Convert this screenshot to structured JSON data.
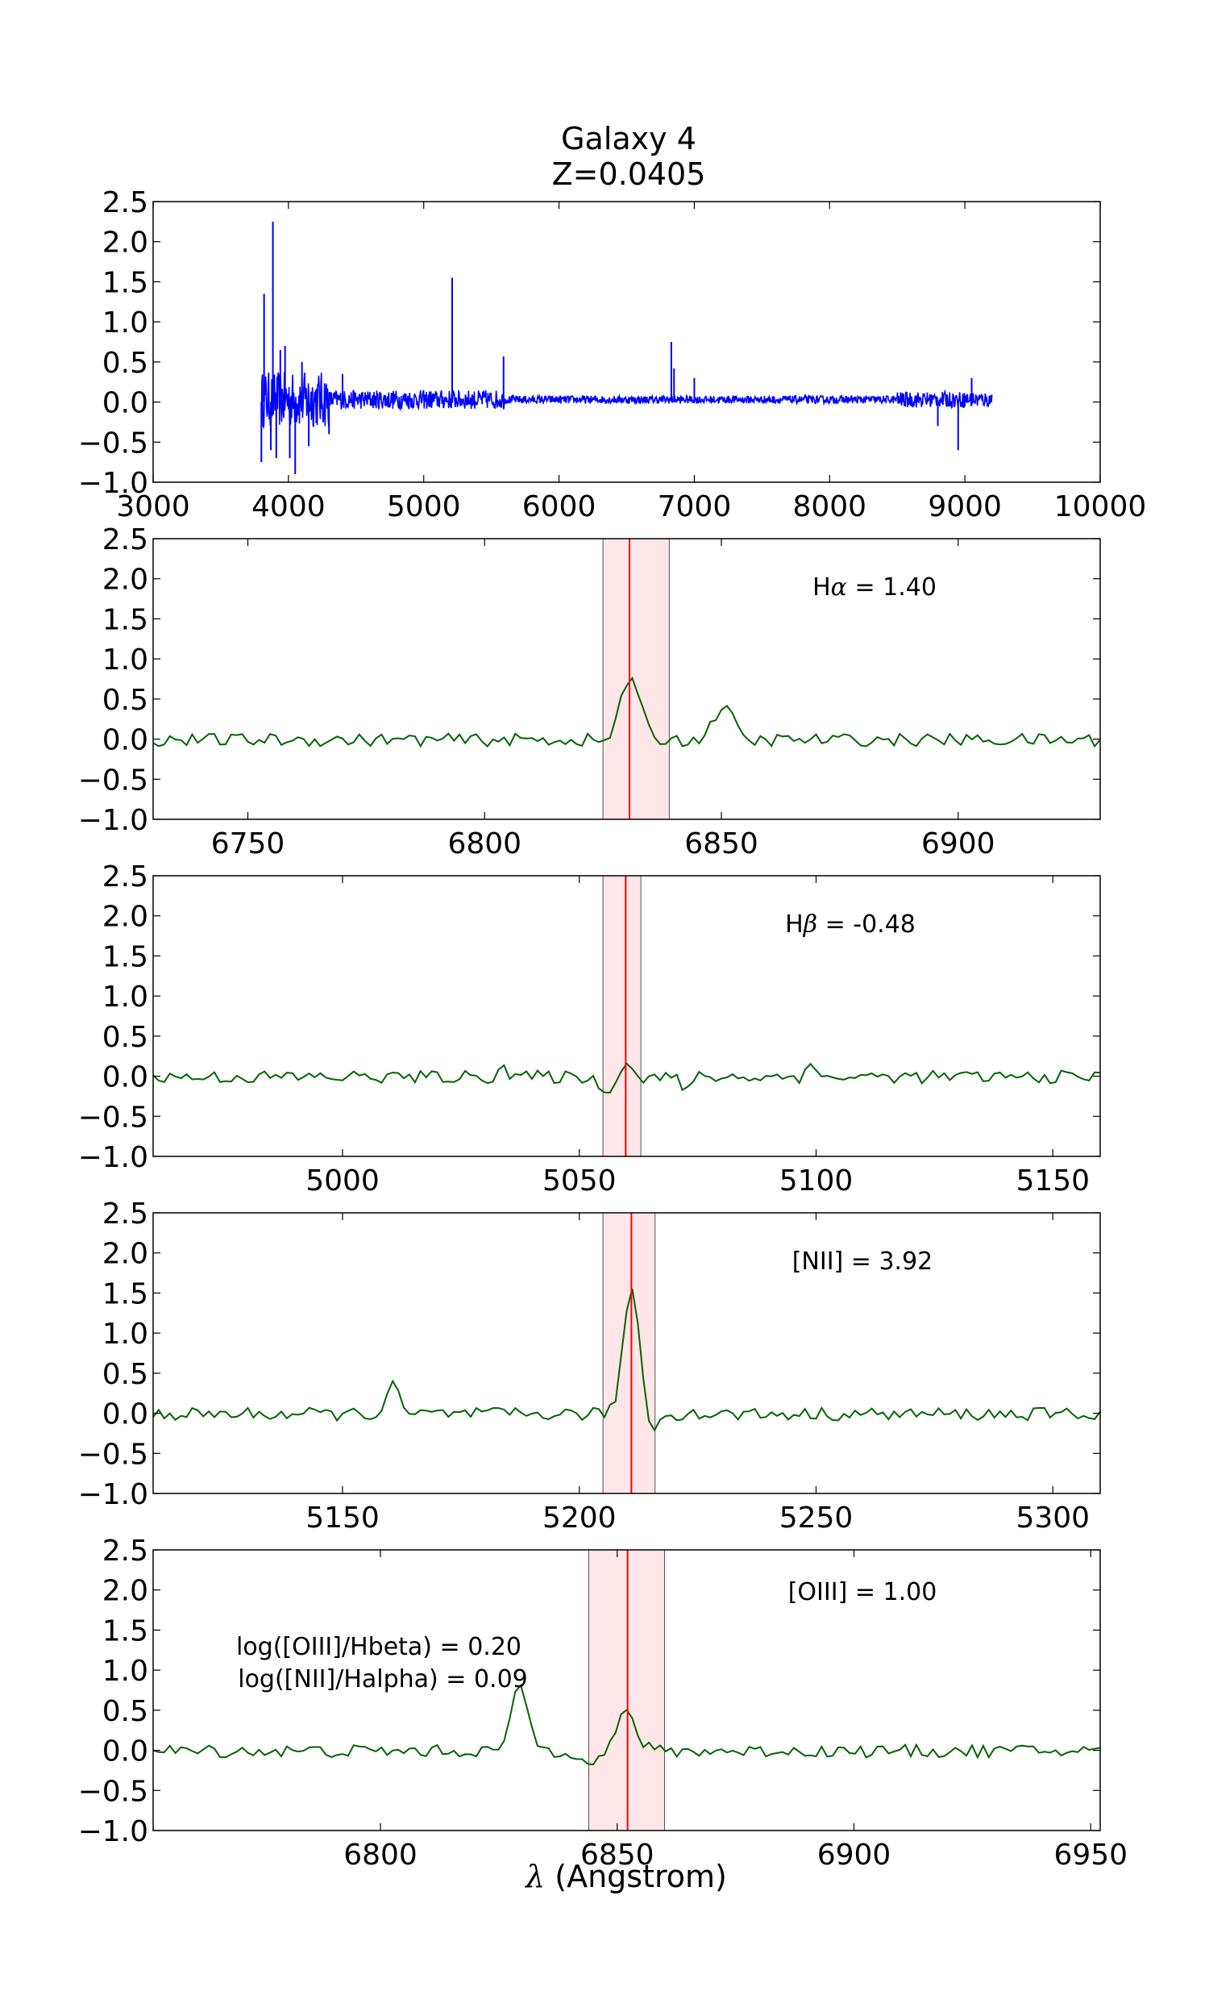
{
  "title_line1": "Galaxy 4",
  "title_line2": "Z=0.0405",
  "xlabel_prefix": "λ",
  "xlabel_rest": " (Angstrom)",
  "colors": {
    "spectrum": "#0000ff",
    "line": "#006400",
    "marker": "#ff0000",
    "band": "#ffb6c1"
  },
  "chart_data": [
    {
      "type": "line",
      "panel": "full spectrum",
      "xlim": [
        3000,
        10000
      ],
      "ylim": [
        -1.0,
        2.5
      ],
      "xticks": [
        3000,
        4000,
        5000,
        6000,
        7000,
        8000,
        9000,
        10000
      ],
      "yticks": [
        -1.0,
        -0.5,
        0.0,
        0.5,
        1.0,
        1.5,
        2.0,
        2.5
      ],
      "x_range_data": [
        3800,
        9200
      ],
      "spikes": [
        {
          "x": 3800,
          "y": -0.75
        },
        {
          "x": 3820,
          "y": 1.35
        },
        {
          "x": 3870,
          "y": -0.6
        },
        {
          "x": 3885,
          "y": 2.25
        },
        {
          "x": 3910,
          "y": -0.7
        },
        {
          "x": 3940,
          "y": 0.65
        },
        {
          "x": 3975,
          "y": 0.7
        },
        {
          "x": 4010,
          "y": -0.7
        },
        {
          "x": 4050,
          "y": -0.9
        },
        {
          "x": 4100,
          "y": 0.5
        },
        {
          "x": 4150,
          "y": -0.55
        },
        {
          "x": 4300,
          "y": -0.4
        },
        {
          "x": 4400,
          "y": 0.35
        },
        {
          "x": 5210,
          "y": 1.55
        },
        {
          "x": 5590,
          "y": 0.57
        },
        {
          "x": 6830,
          "y": 0.75
        },
        {
          "x": 6850,
          "y": 0.42
        },
        {
          "x": 7000,
          "y": 0.3
        },
        {
          "x": 8950,
          "y": -0.6
        },
        {
          "x": 9050,
          "y": 0.3
        },
        {
          "x": 8800,
          "y": -0.3
        }
      ]
    },
    {
      "type": "line",
      "panel": "Halpha",
      "annotation_prefix": "H",
      "annotation_greek": "α",
      "annotation_value": " = 1.40",
      "xlim": [
        6730,
        6930
      ],
      "ylim": [
        -1.0,
        2.5
      ],
      "xticks": [
        6750,
        6800,
        6850,
        6900
      ],
      "yticks": [
        -1.0,
        -0.5,
        0.0,
        0.5,
        1.0,
        1.5,
        2.0,
        2.5
      ],
      "line_center": 6830.6,
      "band": [
        6825.0,
        6839.0
      ],
      "peaks": [
        {
          "x": 6830.6,
          "y": 0.75,
          "w": 2.2
        },
        {
          "x": 6850.5,
          "y": 0.48,
          "w": 2.0
        }
      ],
      "dips": [
        {
          "x": 6826.0,
          "y": -0.12,
          "w": 1.0
        },
        {
          "x": 6852.5,
          "y": -0.05,
          "w": 3.0
        }
      ]
    },
    {
      "type": "line",
      "panel": "Hbeta",
      "annotation_prefix": "H",
      "annotation_greek": "β",
      "annotation_value": " = -0.48",
      "xlim": [
        4960,
        5160
      ],
      "ylim": [
        -1.0,
        2.5
      ],
      "xticks": [
        5000,
        5050,
        5100,
        5150
      ],
      "yticks": [
        -1.0,
        -0.5,
        0.0,
        0.5,
        1.0,
        1.5,
        2.0,
        2.5
      ],
      "line_center": 5059.8,
      "band": [
        5055.0,
        5063.0
      ],
      "peaks": [
        {
          "x": 5059.8,
          "y": 0.22,
          "w": 1.0
        },
        {
          "x": 5033.5,
          "y": 0.2,
          "w": 0.7
        },
        {
          "x": 5098.5,
          "y": 0.25,
          "w": 0.7
        }
      ],
      "dips": [
        {
          "x": 5055.5,
          "y": -0.25,
          "w": 1.0
        },
        {
          "x": 5072.0,
          "y": -0.2,
          "w": 0.8
        }
      ]
    },
    {
      "type": "line",
      "panel": "NII",
      "annotation_prefix": "[NII]",
      "annotation_greek": "",
      "annotation_value": " = 3.92",
      "xlim": [
        5110,
        5310
      ],
      "ylim": [
        -1.0,
        2.5
      ],
      "xticks": [
        5150,
        5200,
        5250,
        5300
      ],
      "yticks": [
        -1.0,
        -0.5,
        0.0,
        0.5,
        1.0,
        1.5,
        2.0,
        2.5
      ],
      "line_center": 5211.0,
      "band": [
        5205.0,
        5216.0
      ],
      "peaks": [
        {
          "x": 5211.0,
          "y": 1.55,
          "w": 1.7
        },
        {
          "x": 5160.5,
          "y": 0.38,
          "w": 1.2
        }
      ],
      "dips": [
        {
          "x": 5215.5,
          "y": -0.25,
          "w": 1.0
        }
      ]
    },
    {
      "type": "line",
      "panel": "OIII",
      "annotation_prefix": "[OIII]",
      "annotation_greek": "",
      "annotation_value": " = 1.00",
      "ratio1": "log([OIII]/Hbeta) = 0.20",
      "ratio2": "log([NII]/Halpha) = 0.09",
      "xlim": [
        6752,
        6952
      ],
      "ylim": [
        -1.0,
        2.5
      ],
      "xticks": [
        6800,
        6850,
        6900,
        6950
      ],
      "yticks": [
        -1.0,
        -0.5,
        0.0,
        0.5,
        1.0,
        1.5,
        2.0,
        2.5
      ],
      "line_center": 6852.2,
      "band": [
        6844.0,
        6860.0
      ],
      "peaks": [
        {
          "x": 6852.0,
          "y": 0.48,
          "w": 2.0
        },
        {
          "x": 6829.5,
          "y": 0.78,
          "w": 1.8
        }
      ],
      "dips": [
        {
          "x": 6845.0,
          "y": -0.12,
          "w": 2.0
        }
      ]
    }
  ]
}
